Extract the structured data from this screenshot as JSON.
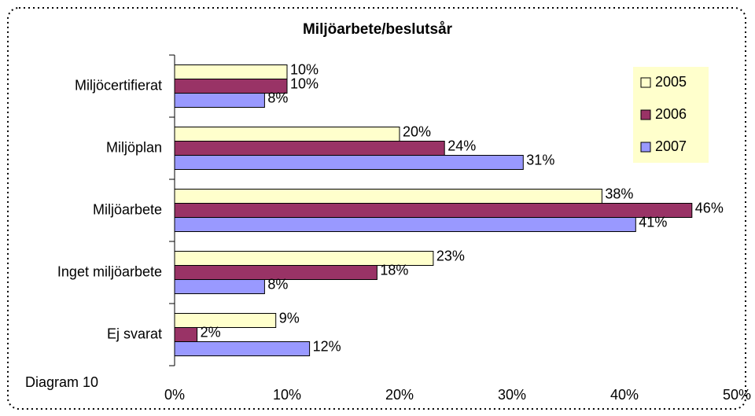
{
  "chart_data": {
    "type": "hbar",
    "title": "Miljöarbete/beslutsår",
    "annotation": "Diagram 10",
    "categories": [
      "Miljöcertifierat",
      "Miljöplan",
      "Miljöarbete",
      "Inget miljöarbete",
      "Ej svarat"
    ],
    "series": [
      {
        "name": "2005",
        "color": "#ffffcc",
        "values": [
          10,
          20,
          38,
          23,
          9
        ],
        "value_labels": [
          "10%",
          "20%",
          "38%",
          "23%",
          "9%"
        ]
      },
      {
        "name": "2006",
        "color": "#993366",
        "values": [
          10,
          24,
          46,
          18,
          2
        ],
        "value_labels": [
          "10%",
          "24%",
          "46%",
          "18%",
          "2%"
        ]
      },
      {
        "name": "2007",
        "color": "#9999ff",
        "values": [
          8,
          31,
          41,
          8,
          12
        ],
        "value_labels": [
          "8%",
          "31%",
          "41%",
          "8%",
          "12%"
        ]
      }
    ],
    "xlim": [
      0,
      50
    ],
    "xticks": [
      {
        "value": 0,
        "label": "0%"
      },
      {
        "value": 10,
        "label": "10%"
      },
      {
        "value": 20,
        "label": "20%"
      },
      {
        "value": 30,
        "label": "30%"
      },
      {
        "value": 40,
        "label": "40%"
      },
      {
        "value": 50,
        "label": "50%"
      }
    ],
    "legend": "upper right"
  }
}
